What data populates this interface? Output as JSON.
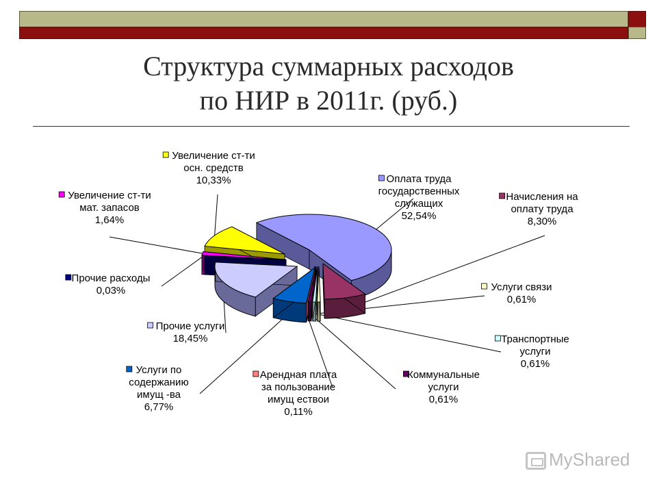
{
  "title_line1": "Структура суммарных расходов",
  "title_line2": "по НИР в 2011г. (руб.)",
  "watermark": "MyShared",
  "chart_data": {
    "type": "pie",
    "title": "Структура суммарных расходов по НИР в 2011г. (руб.)",
    "unit": "%",
    "slices": [
      {
        "name_lines": [
          "Оплата труда",
          "государственных",
          "служащих"
        ],
        "value": 52.54,
        "value_label": "52,54%",
        "color": "#9999ff",
        "side": "#5a5a9a"
      },
      {
        "name_lines": [
          "Начисления на",
          "оплату труда"
        ],
        "value": 8.3,
        "value_label": "8,30%",
        "color": "#993366",
        "side": "#5a1e3c"
      },
      {
        "name_lines": [
          "Услуги связи"
        ],
        "value": 0.61,
        "value_label": "0,61%",
        "color": "#ffffcc",
        "side": "#9a9a7a"
      },
      {
        "name_lines": [
          "Транспортные",
          "услуги"
        ],
        "value": 0.61,
        "value_label": "0,61%",
        "color": "#ccffff",
        "side": "#7a9a9a"
      },
      {
        "name_lines": [
          "Коммунальные",
          "услуги"
        ],
        "value": 0.61,
        "value_label": "0,61%",
        "color": "#660066",
        "side": "#3a003a"
      },
      {
        "name_lines": [
          "Арендная плата",
          "за пользование",
          "имущ ествои"
        ],
        "value": 0.11,
        "value_label": "0,11%",
        "color": "#ff8080",
        "side": "#9a4a4a"
      },
      {
        "name_lines": [
          "Услуги по",
          "содержанию",
          "имущ -ва"
        ],
        "value": 6.77,
        "value_label": "6,77%",
        "color": "#0066cc",
        "side": "#003a7a"
      },
      {
        "name_lines": [
          "Прочие услуги"
        ],
        "value": 18.45,
        "value_label": "18,45%",
        "color": "#ccccff",
        "side": "#6a6a9a"
      },
      {
        "name_lines": [
          "Прочие расходы"
        ],
        "value": 0.03,
        "value_label": "0,03%",
        "color": "#000080",
        "side": "#000040"
      },
      {
        "name_lines": [
          "Увеличение ст-ти",
          "мат. запасов"
        ],
        "value": 1.64,
        "value_label": "1,64%",
        "color": "#ff00ff",
        "side": "#9a009a"
      },
      {
        "name_lines": [
          "Увеличение ст-ти",
          "осн. средств"
        ],
        "value": 10.33,
        "value_label": "10,33%",
        "color": "#ffff00",
        "side": "#9a9a00"
      }
    ]
  }
}
